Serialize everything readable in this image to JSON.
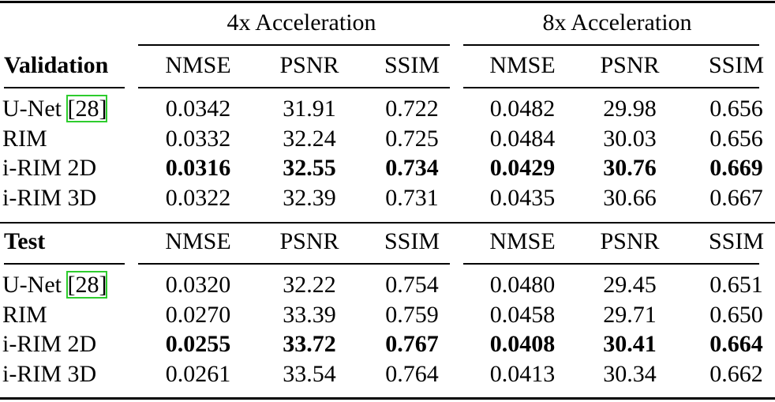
{
  "table": {
    "groups": [
      "4x Acceleration",
      "8x Acceleration"
    ],
    "sections": [
      {
        "title": "Validation",
        "columns": [
          "NMSE",
          "PSNR",
          "SSIM",
          "NMSE",
          "PSNR",
          "SSIM"
        ],
        "rows": [
          {
            "label": "U-Net",
            "citation": "[28]",
            "bold": false,
            "cells": [
              "0.0342",
              "31.91",
              "0.722",
              "0.0482",
              "29.98",
              "0.656"
            ]
          },
          {
            "label": "RIM",
            "bold": false,
            "cells": [
              "0.0332",
              "32.24",
              "0.725",
              "0.0484",
              "30.03",
              "0.656"
            ]
          },
          {
            "label": "i-RIM 2D",
            "bold": true,
            "cells": [
              "0.0316",
              "32.55",
              "0.734",
              "0.0429",
              "30.76",
              "0.669"
            ]
          },
          {
            "label": "i-RIM 3D",
            "bold": false,
            "cells": [
              "0.0322",
              "32.39",
              "0.731",
              "0.0435",
              "30.66",
              "0.667"
            ]
          }
        ]
      },
      {
        "title": "Test",
        "columns": [
          "NMSE",
          "PSNR",
          "SSIM",
          "NMSE",
          "PSNR",
          "SSIM"
        ],
        "rows": [
          {
            "label": "U-Net",
            "citation": "[28]",
            "bold": false,
            "cells": [
              "0.0320",
              "32.22",
              "0.754",
              "0.0480",
              "29.45",
              "0.651"
            ]
          },
          {
            "label": "RIM",
            "bold": false,
            "cells": [
              "0.0270",
              "33.39",
              "0.759",
              "0.0458",
              "29.71",
              "0.650"
            ]
          },
          {
            "label": "i-RIM 2D",
            "bold": true,
            "cells": [
              "0.0255",
              "33.72",
              "0.767",
              "0.0408",
              "30.41",
              "0.664"
            ]
          },
          {
            "label": "i-RIM 3D",
            "bold": false,
            "cells": [
              "0.0261",
              "33.54",
              "0.764",
              "0.0413",
              "30.34",
              "0.662"
            ]
          }
        ]
      }
    ]
  }
}
